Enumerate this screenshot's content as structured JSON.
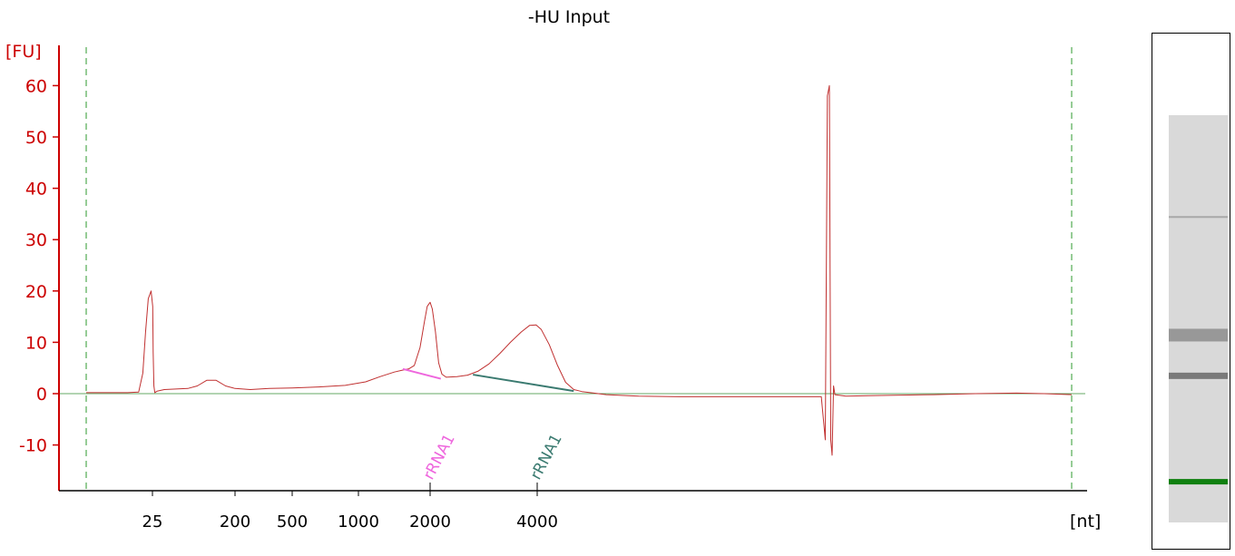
{
  "chart_data": {
    "type": "line",
    "title": "-HU Input",
    "ylabel": "[FU]",
    "xlabel": "[nt]",
    "ylim": [
      -19,
      68
    ],
    "yticks": [
      -10,
      0,
      10,
      20,
      30,
      40,
      50,
      60
    ],
    "x_scale": "nonlinear (electrophoresis size ladder)",
    "xticks": [
      "25",
      "200",
      "500",
      "1000",
      "2000",
      "4000"
    ],
    "grid": false,
    "colors": {
      "axis": "#cc0000",
      "trace": "#c03030",
      "baseline": "#66aa66",
      "marker_line": "#2e9a2e",
      "peak1": "#ee66dd",
      "peak2": "#3a7a70",
      "gel_marker_band": "#108010"
    },
    "series": [
      {
        "name": "",
        "points": [
          [
            1,
            0.2
          ],
          [
            16,
            0.2
          ],
          [
            20,
            0.3
          ],
          [
            21.5,
            4
          ],
          [
            22.5,
            12
          ],
          [
            23.5,
            18.5
          ],
          [
            24.5,
            20
          ],
          [
            25.5,
            17
          ],
          [
            26.5,
            8
          ],
          [
            28,
            1.5
          ],
          [
            30,
            0.2
          ],
          [
            35,
            0.5
          ],
          [
            50,
            0.8
          ],
          [
            100,
            1.0
          ],
          [
            120,
            1.5
          ],
          [
            140,
            2.6
          ],
          [
            160,
            2.6
          ],
          [
            180,
            1.5
          ],
          [
            200,
            1.0
          ],
          [
            280,
            0.8
          ],
          [
            380,
            1.0
          ],
          [
            500,
            1.1
          ],
          [
            700,
            1.3
          ],
          [
            900,
            1.6
          ],
          [
            1100,
            2.3
          ],
          [
            1300,
            3.3
          ],
          [
            1500,
            4.2
          ],
          [
            1620,
            4.6
          ],
          [
            1700,
            4.8
          ],
          [
            1780,
            5.5
          ],
          [
            1860,
            9.0
          ],
          [
            1920,
            14
          ],
          [
            1960,
            17
          ],
          [
            2000,
            17.8
          ],
          [
            2040,
            16.5
          ],
          [
            2100,
            12
          ],
          [
            2160,
            6
          ],
          [
            2220,
            3.8
          ],
          [
            2300,
            3.2
          ],
          [
            2500,
            3.3
          ],
          [
            2700,
            3.6
          ],
          [
            2900,
            4.4
          ],
          [
            3100,
            5.8
          ],
          [
            3300,
            7.8
          ],
          [
            3500,
            10
          ],
          [
            3700,
            12
          ],
          [
            3860,
            13.3
          ],
          [
            3980,
            13.4
          ],
          [
            4100,
            12.5
          ],
          [
            4300,
            9.5
          ],
          [
            4500,
            5.5
          ],
          [
            4700,
            2.2
          ],
          [
            4900,
            0.8
          ],
          [
            5100,
            0.4
          ],
          [
            5400,
            0.1
          ],
          [
            5700,
            -0.2
          ],
          [
            6000,
            -0.3
          ],
          [
            6500,
            -0.5
          ],
          [
            7500,
            -0.6
          ],
          [
            8500,
            -0.6
          ],
          [
            9500,
            -0.6
          ],
          [
            10600,
            -0.6
          ],
          [
            11000,
            -0.6
          ],
          [
            11100,
            -9
          ],
          [
            11150,
            58
          ],
          [
            11200,
            60
          ],
          [
            11250,
            -9
          ],
          [
            11300,
            -12
          ],
          [
            11350,
            1.5
          ],
          [
            11400,
            -0.2
          ],
          [
            11800,
            -0.5
          ],
          [
            12600,
            -0.4
          ],
          [
            13600,
            -0.3
          ],
          [
            15000,
            -0.2
          ],
          [
            16500,
            0.0
          ],
          [
            18000,
            0.1
          ],
          [
            19000,
            0.0
          ],
          [
            20000,
            -0.2
          ]
        ]
      }
    ],
    "annotations": [
      {
        "label": "rRNA1",
        "color": "#ee66dd",
        "fit_line": [
          [
            1620,
            4.8
          ],
          [
            2200,
            2.9
          ]
        ],
        "marker_x": 2000
      },
      {
        "label": "rRNA1",
        "color": "#3a7a70",
        "fit_line": [
          [
            2800,
            3.7
          ],
          [
            4900,
            0.5
          ]
        ],
        "marker_x": 4000
      }
    ],
    "gel_lane": {
      "bands": [
        {
          "position": 0.25,
          "intensity": "faint"
        },
        {
          "position": 0.54,
          "intensity": "medium"
        },
        {
          "position": 0.64,
          "intensity": "dark"
        },
        {
          "position": 0.9,
          "intensity": "marker"
        }
      ]
    }
  }
}
